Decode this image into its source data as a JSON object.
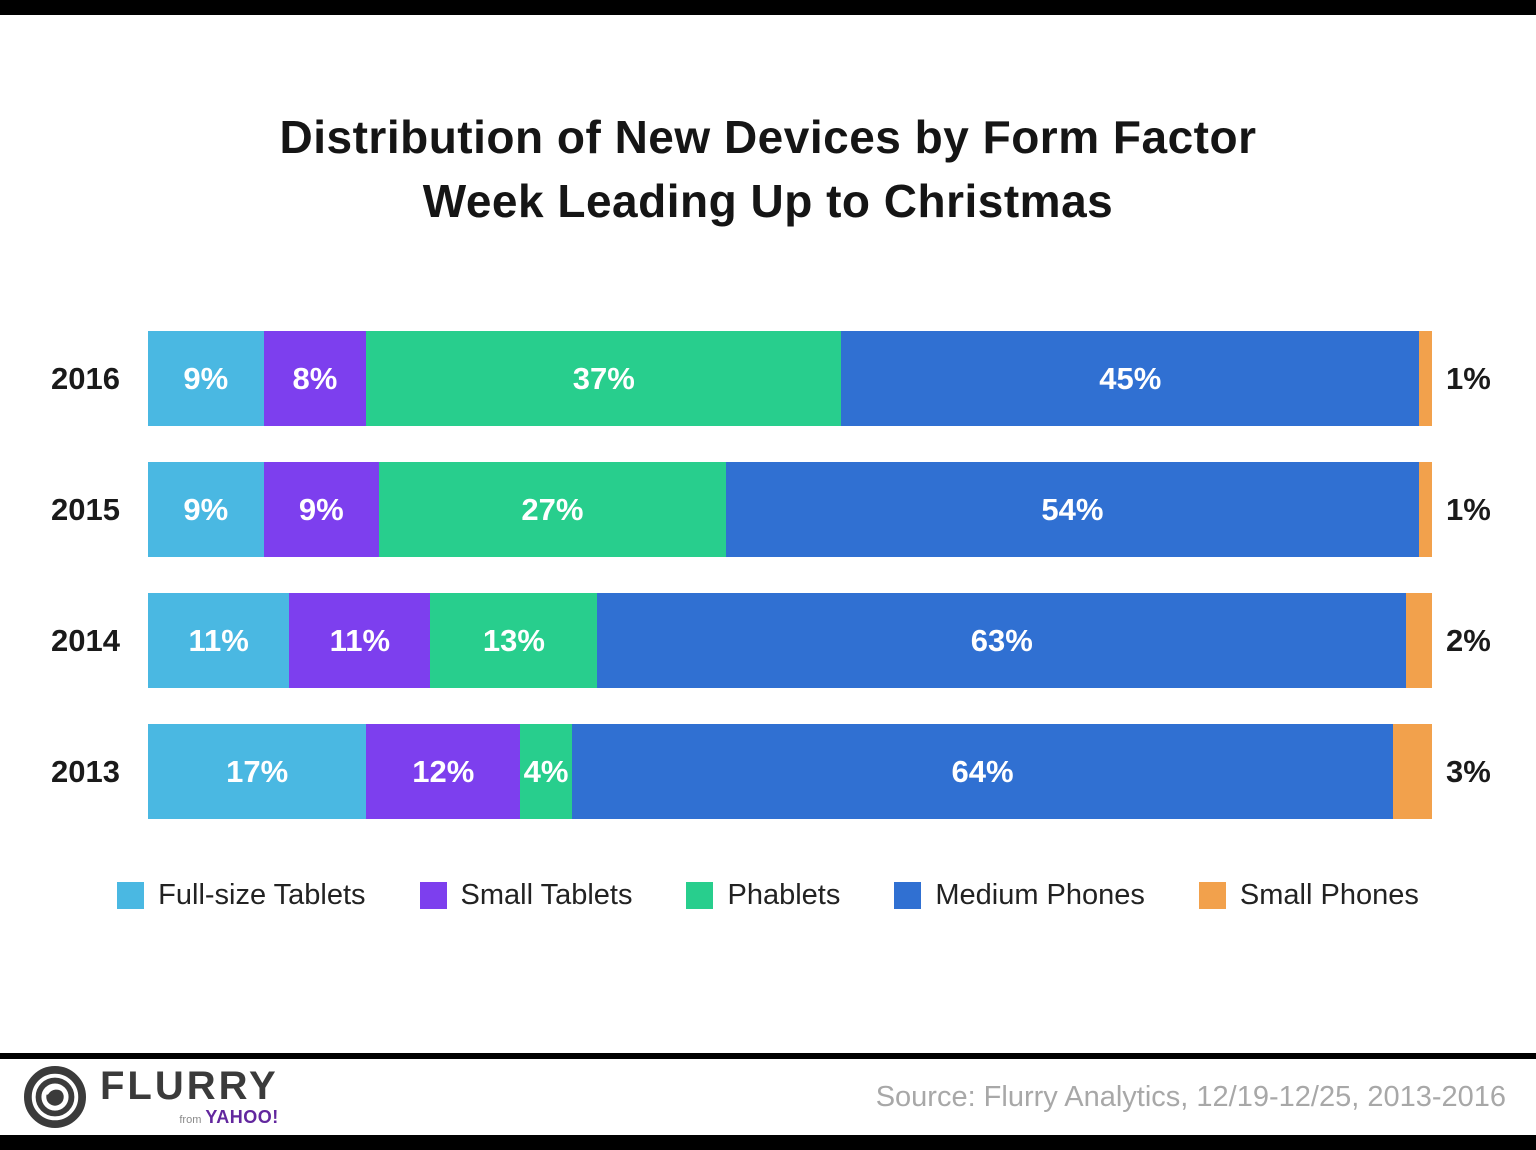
{
  "title": {
    "line1": "Distribution of New Devices by Form Factor",
    "line2": "Week Leading Up to Christmas"
  },
  "chart_data": {
    "type": "bar",
    "orientation": "horizontal",
    "stacked": true,
    "categories": [
      "2016",
      "2015",
      "2014",
      "2013"
    ],
    "series": [
      {
        "name": "Full-size Tablets",
        "color": "#4ab8e2",
        "values": [
          9,
          9,
          11,
          17
        ]
      },
      {
        "name": "Small Tablets",
        "color": "#7d3fee",
        "values": [
          8,
          9,
          11,
          12
        ]
      },
      {
        "name": "Phablets",
        "color": "#28ce8d",
        "values": [
          37,
          27,
          13,
          4
        ]
      },
      {
        "name": "Medium Phones",
        "color": "#3070d2",
        "values": [
          45,
          54,
          63,
          64
        ]
      },
      {
        "name": "Small Phones",
        "color": "#f2a14c",
        "values": [
          1,
          1,
          2,
          3
        ]
      }
    ],
    "value_suffix": "%",
    "xlim": [
      0,
      100
    ],
    "legend_position": "bottom",
    "label_style": "inside-white-except-last-series-outside-black"
  },
  "footer": {
    "logo": {
      "brand": "FLURRY",
      "from": "from",
      "yahoo": "YAHOO!"
    },
    "source": "Source: Flurry Analytics, 12/19-12/25, 2013-2016"
  }
}
